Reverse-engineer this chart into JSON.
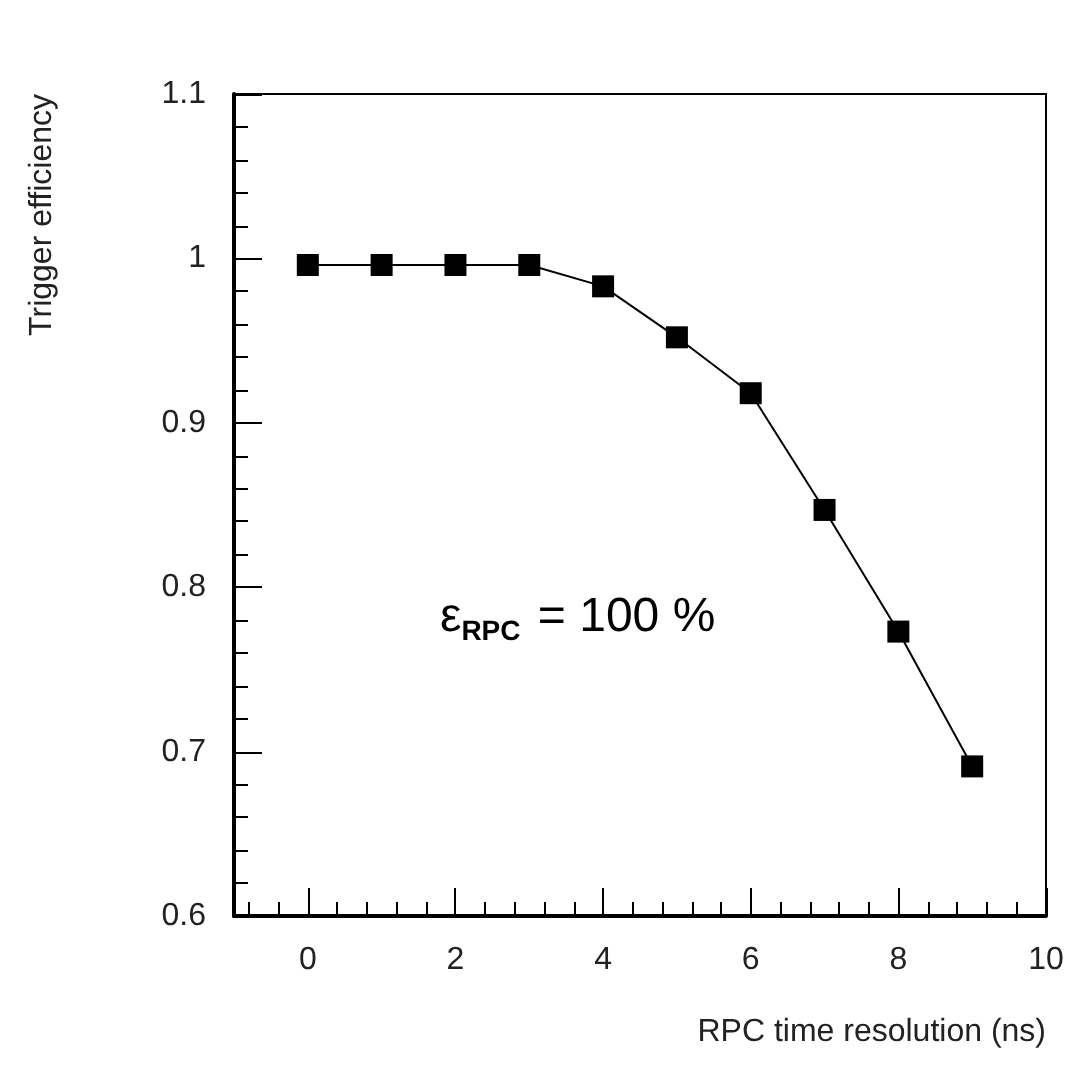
{
  "chart_data": {
    "type": "line",
    "xlabel": "RPC time resolution (ns)",
    "ylabel": "Trigger efficiency",
    "annotations": [
      "ε$_{RPC}$ = 100 %"
    ],
    "x": [
      0,
      1,
      2,
      3,
      4,
      5,
      6,
      7,
      8,
      9
    ],
    "series": [
      {
        "color": "#000000",
        "values": [
          0.996,
          0.996,
          0.996,
          0.996,
          0.983,
          0.952,
          0.918,
          0.847,
          0.773,
          0.691
        ]
      }
    ],
    "xlim": [
      -1,
      10
    ],
    "xticks": [
      0,
      2,
      4,
      6,
      8,
      10
    ],
    "ylim": [
      0.6,
      1.1
    ],
    "yticks": [
      0.6,
      0.7,
      0.8,
      0.9,
      1,
      1.1
    ],
    "grid": false,
    "marker": "square",
    "line_style": "solid"
  }
}
